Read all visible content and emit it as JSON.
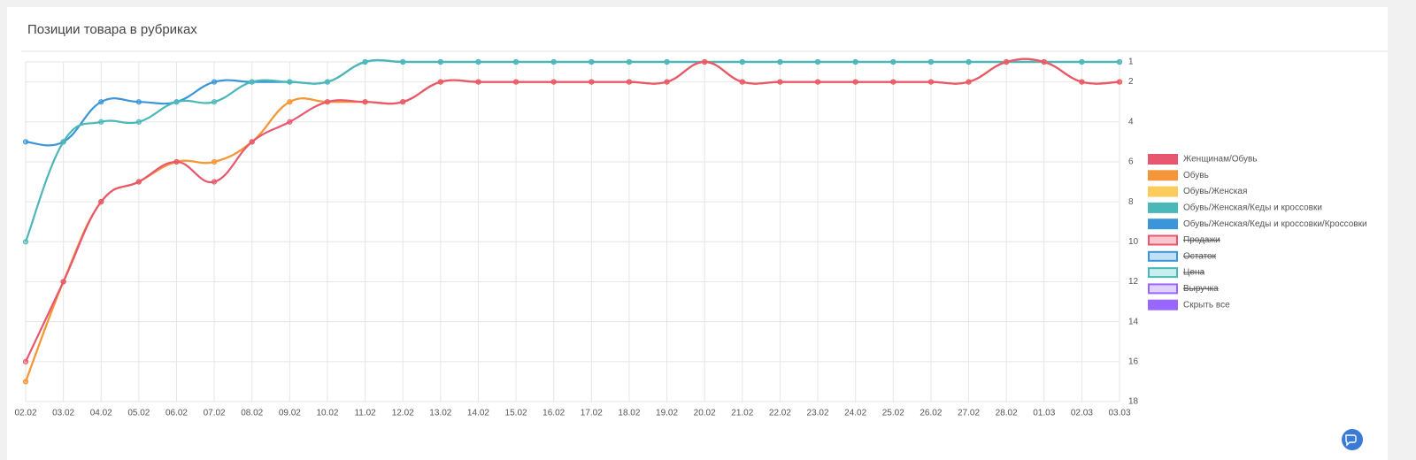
{
  "chart_data": {
    "type": "line",
    "title": "Позиции товара в рубриках",
    "categories": [
      "02.02",
      "03.02",
      "04.02",
      "05.02",
      "06.02",
      "07.02",
      "08.02",
      "09.02",
      "10.02",
      "11.02",
      "12.02",
      "13.02",
      "14.02",
      "15.02",
      "16.02",
      "17.02",
      "18.02",
      "19.02",
      "20.02",
      "21.02",
      "22.02",
      "23.02",
      "24.02",
      "25.02",
      "26.02",
      "27.02",
      "28.02",
      "01.03",
      "02.03",
      "03.03"
    ],
    "series": [
      {
        "name": "Женщинам/Обувь",
        "color": "#e8576e",
        "values": [
          16,
          12,
          8,
          7,
          6,
          7,
          5,
          4,
          3,
          3,
          3,
          2,
          2,
          2,
          2,
          2,
          2,
          2,
          1,
          2,
          2,
          2,
          2,
          2,
          2,
          2,
          1,
          1,
          2,
          2
        ]
      },
      {
        "name": "Обувь",
        "color": "#f5963a",
        "values": [
          17,
          12,
          8,
          7,
          6,
          6,
          5,
          3,
          3,
          3,
          3,
          2,
          2,
          2,
          2,
          2,
          2,
          2,
          1,
          2,
          2,
          2,
          2,
          2,
          2,
          2,
          1,
          1,
          2,
          2
        ]
      },
      {
        "name": "Обувь/Женская",
        "color": "#fbcb5c",
        "values": [
          17,
          12,
          8,
          7,
          6,
          6,
          5,
          3,
          3,
          3,
          3,
          2,
          2,
          2,
          2,
          2,
          2,
          2,
          1,
          2,
          2,
          2,
          2,
          2,
          2,
          2,
          1,
          1,
          2,
          2
        ]
      },
      {
        "name": "Обувь/Женская/Кеды и кроссовки",
        "color": "#4bb8b8",
        "values": [
          10,
          5,
          4,
          4,
          3,
          3,
          2,
          2,
          2,
          1,
          1,
          1,
          1,
          1,
          1,
          1,
          1,
          1,
          1,
          1,
          1,
          1,
          1,
          1,
          1,
          1,
          1,
          1,
          1,
          1
        ]
      },
      {
        "name": "Обувь/Женская/Кеды и кроссовки/Кроссовки",
        "color": "#3a96d8",
        "values": [
          5,
          5,
          3,
          3,
          3,
          2,
          2,
          2,
          2,
          1,
          1,
          1,
          1,
          1,
          1,
          1,
          1,
          1,
          1,
          1,
          1,
          1,
          1,
          1,
          1,
          1,
          1,
          1,
          1,
          1
        ]
      }
    ],
    "hidden_series": [
      {
        "name": "Продажи",
        "color": "#e8576e",
        "fill": "#f9c6cf"
      },
      {
        "name": "Остаток",
        "color": "#3a96d8",
        "fill": "#c1e0f5"
      },
      {
        "name": "Цена",
        "color": "#4bb8b8",
        "fill": "#c9eeee"
      },
      {
        "name": "Выручка",
        "color": "#9966ff",
        "fill": "#e0d2fb"
      }
    ],
    "hide_all": {
      "name": "Скрыть все",
      "color": "#9966ff"
    },
    "ylim": [
      18,
      1
    ],
    "yticks": [
      1,
      2,
      4,
      6,
      8,
      10,
      12,
      14,
      16,
      18
    ],
    "grid": true,
    "legend_position": "right"
  }
}
